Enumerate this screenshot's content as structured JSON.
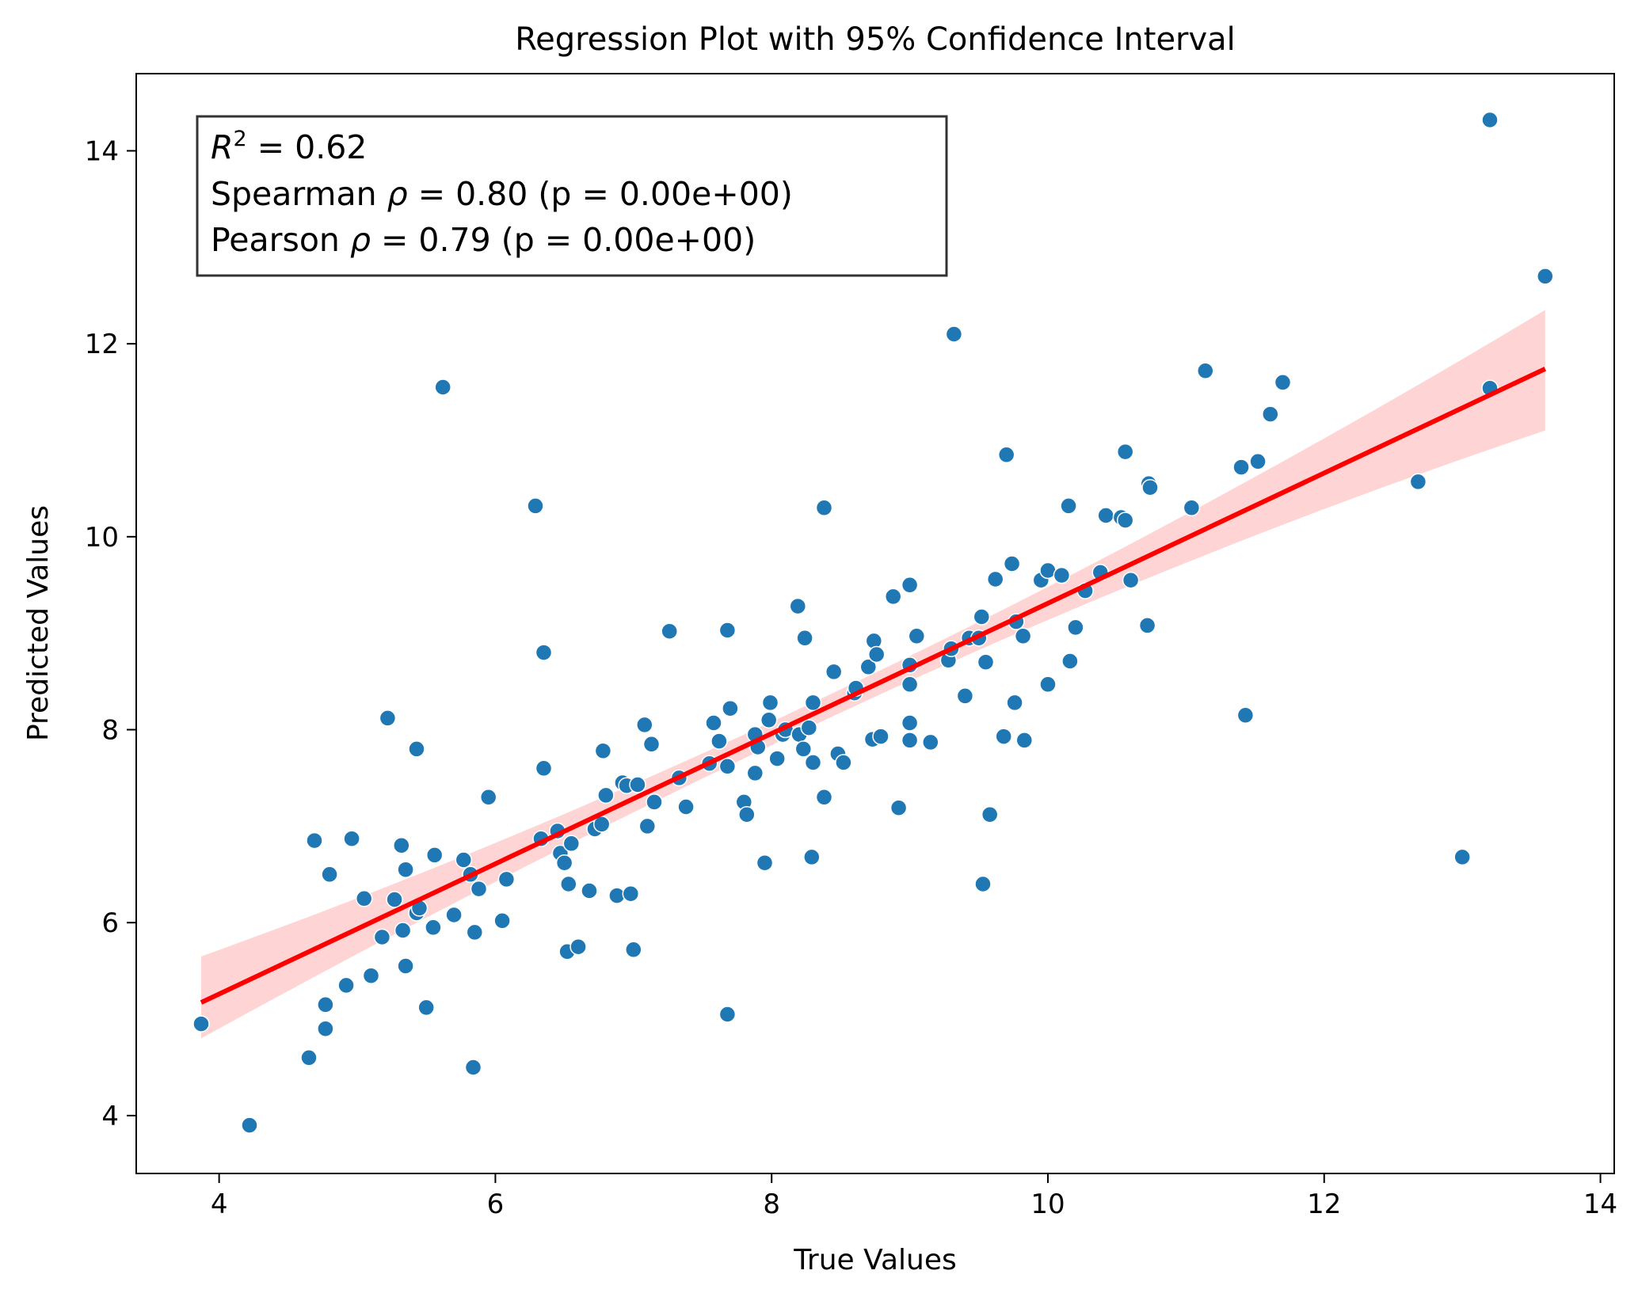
{
  "chart_data": {
    "type": "scatter",
    "title": "Regression Plot with 95% Confidence Interval",
    "xlabel": "True Values",
    "ylabel": "Predicted Values",
    "xlim": [
      3.4,
      14.1
    ],
    "ylim": [
      3.4,
      14.8
    ],
    "xticks": [
      4,
      6,
      8,
      10,
      12,
      14
    ],
    "yticks": [
      4,
      6,
      8,
      10,
      12,
      14
    ],
    "grid": false,
    "colors": {
      "points": "#1f77b4",
      "regression_line": "#ff0000",
      "confidence_band": "#ffcccc",
      "stats_box_border": "#333333"
    },
    "stats": [
      {
        "label": "R",
        "sup": "2",
        "value": " = 0.62"
      },
      {
        "label": "Spearman ",
        "greek": "ρ",
        "value": " = 0.80  (p = 0.00e+00)"
      },
      {
        "label": "Pearson ",
        "greek": "ρ",
        "value": " = 0.79  (p = 0.00e+00)"
      }
    ],
    "regression": {
      "x_range": [
        3.87,
        13.6
      ],
      "intercept": 2.56,
      "slope": 0.675,
      "ci_lower_at_ends": [
        4.8,
        11.1
      ],
      "ci_upper_at_ends": [
        5.65,
        12.35
      ]
    },
    "points": [
      [
        3.87,
        4.95
      ],
      [
        4.22,
        3.9
      ],
      [
        4.65,
        4.6
      ],
      [
        4.69,
        6.85
      ],
      [
        4.77,
        5.15
      ],
      [
        4.77,
        4.9
      ],
      [
        4.8,
        6.5
      ],
      [
        4.92,
        5.35
      ],
      [
        4.96,
        6.87
      ],
      [
        5.05,
        6.25
      ],
      [
        5.1,
        5.45
      ],
      [
        5.18,
        5.85
      ],
      [
        5.22,
        8.12
      ],
      [
        5.27,
        6.24
      ],
      [
        5.32,
        6.8
      ],
      [
        5.33,
        5.92
      ],
      [
        5.35,
        6.55
      ],
      [
        5.35,
        5.55
      ],
      [
        5.43,
        7.8
      ],
      [
        5.43,
        6.1
      ],
      [
        5.45,
        6.15
      ],
      [
        5.5,
        5.12
      ],
      [
        5.55,
        5.95
      ],
      [
        5.56,
        6.7
      ],
      [
        5.62,
        11.55
      ],
      [
        5.7,
        6.08
      ],
      [
        5.77,
        6.65
      ],
      [
        5.82,
        6.5
      ],
      [
        5.84,
        4.5
      ],
      [
        5.85,
        5.9
      ],
      [
        5.88,
        6.35
      ],
      [
        5.95,
        7.3
      ],
      [
        6.05,
        6.02
      ],
      [
        6.08,
        6.45
      ],
      [
        6.29,
        10.32
      ],
      [
        6.33,
        6.87
      ],
      [
        6.35,
        8.8
      ],
      [
        6.35,
        7.6
      ],
      [
        6.45,
        6.95
      ],
      [
        6.47,
        6.72
      ],
      [
        6.5,
        6.62
      ],
      [
        6.52,
        5.7
      ],
      [
        6.53,
        6.4
      ],
      [
        6.55,
        6.82
      ],
      [
        6.6,
        5.75
      ],
      [
        6.68,
        6.33
      ],
      [
        6.72,
        6.97
      ],
      [
        6.77,
        7.02
      ],
      [
        6.78,
        7.78
      ],
      [
        6.8,
        7.32
      ],
      [
        6.88,
        6.28
      ],
      [
        6.92,
        7.45
      ],
      [
        6.95,
        7.42
      ],
      [
        6.98,
        6.3
      ],
      [
        7.0,
        5.72
      ],
      [
        7.03,
        7.43
      ],
      [
        7.08,
        8.05
      ],
      [
        7.1,
        7.0
      ],
      [
        7.13,
        7.85
      ],
      [
        7.15,
        7.25
      ],
      [
        7.26,
        9.02
      ],
      [
        7.33,
        7.5
      ],
      [
        7.38,
        7.2
      ],
      [
        7.55,
        7.65
      ],
      [
        7.58,
        8.07
      ],
      [
        7.62,
        7.88
      ],
      [
        7.68,
        9.03
      ],
      [
        7.68,
        7.62
      ],
      [
        7.7,
        8.22
      ],
      [
        7.68,
        5.05
      ],
      [
        7.8,
        7.25
      ],
      [
        7.82,
        7.12
      ],
      [
        7.88,
        7.55
      ],
      [
        7.88,
        7.95
      ],
      [
        7.9,
        7.82
      ],
      [
        7.95,
        6.62
      ],
      [
        7.98,
        8.1
      ],
      [
        7.99,
        8.28
      ],
      [
        8.04,
        7.7
      ],
      [
        8.08,
        7.95
      ],
      [
        8.1,
        8.0
      ],
      [
        8.19,
        9.28
      ],
      [
        8.2,
        7.95
      ],
      [
        8.23,
        7.8
      ],
      [
        8.24,
        8.95
      ],
      [
        8.27,
        8.02
      ],
      [
        8.29,
        6.68
      ],
      [
        8.3,
        8.28
      ],
      [
        8.3,
        7.66
      ],
      [
        8.38,
        10.3
      ],
      [
        8.38,
        7.3
      ],
      [
        8.45,
        8.6
      ],
      [
        8.48,
        7.75
      ],
      [
        8.52,
        7.66
      ],
      [
        8.6,
        8.38
      ],
      [
        8.61,
        8.43
      ],
      [
        8.7,
        8.65
      ],
      [
        8.73,
        7.9
      ],
      [
        8.74,
        8.92
      ],
      [
        8.76,
        8.78
      ],
      [
        8.79,
        7.93
      ],
      [
        8.88,
        9.38
      ],
      [
        8.92,
        7.19
      ],
      [
        9.0,
        9.5
      ],
      [
        9.0,
        8.67
      ],
      [
        9.0,
        8.47
      ],
      [
        9.0,
        8.07
      ],
      [
        9.0,
        7.89
      ],
      [
        9.05,
        8.97
      ],
      [
        9.15,
        7.87
      ],
      [
        9.28,
        8.72
      ],
      [
        9.3,
        8.84
      ],
      [
        9.32,
        12.1
      ],
      [
        9.4,
        8.35
      ],
      [
        9.43,
        8.95
      ],
      [
        9.5,
        8.95
      ],
      [
        9.52,
        9.17
      ],
      [
        9.53,
        6.4
      ],
      [
        9.55,
        8.7
      ],
      [
        9.58,
        7.12
      ],
      [
        9.62,
        9.56
      ],
      [
        9.68,
        7.93
      ],
      [
        9.7,
        10.85
      ],
      [
        9.74,
        9.72
      ],
      [
        9.76,
        8.28
      ],
      [
        9.77,
        9.12
      ],
      [
        9.82,
        8.97
      ],
      [
        9.83,
        7.89
      ],
      [
        9.95,
        9.55
      ],
      [
        10.0,
        9.65
      ],
      [
        10.0,
        8.47
      ],
      [
        10.1,
        9.6
      ],
      [
        10.15,
        10.32
      ],
      [
        10.16,
        8.71
      ],
      [
        10.2,
        9.06
      ],
      [
        10.27,
        9.44
      ],
      [
        10.38,
        9.63
      ],
      [
        10.42,
        10.22
      ],
      [
        10.53,
        10.2
      ],
      [
        10.56,
        10.88
      ],
      [
        10.56,
        10.17
      ],
      [
        10.6,
        9.55
      ],
      [
        10.72,
        9.08
      ],
      [
        10.73,
        10.55
      ],
      [
        10.74,
        10.51
      ],
      [
        11.04,
        10.3
      ],
      [
        11.14,
        11.72
      ],
      [
        11.4,
        10.72
      ],
      [
        11.43,
        8.15
      ],
      [
        11.52,
        10.78
      ],
      [
        11.61,
        11.27
      ],
      [
        11.7,
        11.6
      ],
      [
        12.68,
        10.57
      ],
      [
        13.0,
        6.68
      ],
      [
        13.2,
        14.32
      ],
      [
        13.2,
        11.54
      ],
      [
        13.6,
        12.7
      ]
    ]
  }
}
